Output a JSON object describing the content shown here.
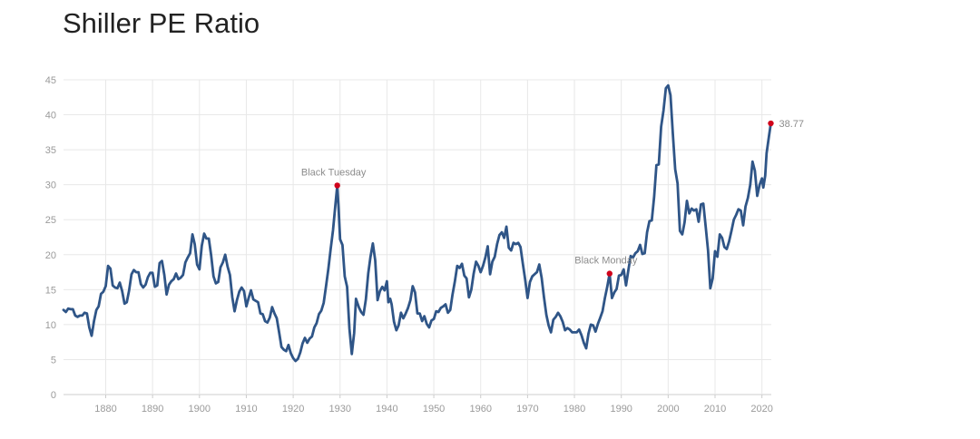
{
  "chart_data": {
    "type": "line",
    "title": "Shiller PE Ratio",
    "xlabel": "",
    "ylabel": "",
    "xlim": [
      1871,
      2022
    ],
    "ylim": [
      0,
      45
    ],
    "yticks": [
      0,
      5,
      10,
      15,
      20,
      25,
      30,
      35,
      40,
      45
    ],
    "xticks": [
      1880,
      1890,
      1900,
      1910,
      1920,
      1930,
      1940,
      1950,
      1960,
      1970,
      1980,
      1990,
      2000,
      2010,
      2020
    ],
    "grid": true,
    "legend": "none",
    "colors": {
      "line": "#2f5587",
      "marker": "#d0021b",
      "grid": "#e8e8e8"
    },
    "series": [
      {
        "name": "Shiller PE Ratio",
        "points": [
          [
            1871.0,
            12.1
          ],
          [
            1871.5,
            11.8
          ],
          [
            1872.0,
            12.3
          ],
          [
            1872.5,
            12.2
          ],
          [
            1873.0,
            12.2
          ],
          [
            1873.5,
            11.3
          ],
          [
            1874.0,
            11.1
          ],
          [
            1874.5,
            11.3
          ],
          [
            1875.0,
            11.3
          ],
          [
            1875.5,
            11.7
          ],
          [
            1876.0,
            11.6
          ],
          [
            1876.5,
            9.6
          ],
          [
            1877.0,
            8.4
          ],
          [
            1877.5,
            10.5
          ],
          [
            1878.0,
            12.1
          ],
          [
            1878.5,
            12.6
          ],
          [
            1879.0,
            14.4
          ],
          [
            1879.5,
            14.7
          ],
          [
            1880.0,
            15.5
          ],
          [
            1880.5,
            18.4
          ],
          [
            1881.0,
            18.0
          ],
          [
            1881.5,
            15.6
          ],
          [
            1882.0,
            15.3
          ],
          [
            1882.5,
            15.2
          ],
          [
            1883.0,
            16.0
          ],
          [
            1883.5,
            14.8
          ],
          [
            1884.0,
            13.0
          ],
          [
            1884.5,
            13.2
          ],
          [
            1885.0,
            14.9
          ],
          [
            1885.5,
            17.2
          ],
          [
            1886.0,
            17.8
          ],
          [
            1886.5,
            17.5
          ],
          [
            1887.0,
            17.5
          ],
          [
            1887.5,
            15.8
          ],
          [
            1888.0,
            15.3
          ],
          [
            1888.5,
            15.7
          ],
          [
            1889.0,
            16.8
          ],
          [
            1889.5,
            17.4
          ],
          [
            1890.0,
            17.4
          ],
          [
            1890.5,
            15.4
          ],
          [
            1891.0,
            15.6
          ],
          [
            1891.5,
            18.8
          ],
          [
            1892.0,
            19.1
          ],
          [
            1892.5,
            17.1
          ],
          [
            1893.0,
            14.3
          ],
          [
            1893.5,
            15.7
          ],
          [
            1894.0,
            16.2
          ],
          [
            1894.5,
            16.5
          ],
          [
            1895.0,
            17.3
          ],
          [
            1895.5,
            16.5
          ],
          [
            1896.0,
            16.7
          ],
          [
            1896.5,
            17.1
          ],
          [
            1897.0,
            18.9
          ],
          [
            1897.5,
            19.6
          ],
          [
            1898.0,
            20.2
          ],
          [
            1898.5,
            22.9
          ],
          [
            1899.0,
            21.5
          ],
          [
            1899.5,
            18.6
          ],
          [
            1900.0,
            17.9
          ],
          [
            1900.5,
            21.3
          ],
          [
            1901.0,
            23.0
          ],
          [
            1901.5,
            22.3
          ],
          [
            1902.0,
            22.3
          ],
          [
            1902.5,
            19.9
          ],
          [
            1903.0,
            16.9
          ],
          [
            1903.5,
            15.9
          ],
          [
            1904.0,
            16.1
          ],
          [
            1904.5,
            18.2
          ],
          [
            1905.0,
            18.9
          ],
          [
            1905.5,
            20.0
          ],
          [
            1906.0,
            18.3
          ],
          [
            1906.5,
            17.1
          ],
          [
            1907.0,
            13.9
          ],
          [
            1907.5,
            11.9
          ],
          [
            1908.0,
            13.5
          ],
          [
            1908.5,
            14.7
          ],
          [
            1909.0,
            15.3
          ],
          [
            1909.5,
            14.8
          ],
          [
            1910.0,
            12.6
          ],
          [
            1910.5,
            13.8
          ],
          [
            1911.0,
            14.9
          ],
          [
            1911.5,
            13.6
          ],
          [
            1912.0,
            13.4
          ],
          [
            1912.5,
            13.2
          ],
          [
            1913.0,
            11.6
          ],
          [
            1913.5,
            11.5
          ],
          [
            1914.0,
            10.5
          ],
          [
            1914.5,
            10.3
          ],
          [
            1915.0,
            11.0
          ],
          [
            1915.5,
            12.5
          ],
          [
            1916.0,
            11.6
          ],
          [
            1916.5,
            10.9
          ],
          [
            1917.0,
            8.9
          ],
          [
            1917.5,
            6.8
          ],
          [
            1918.0,
            6.4
          ],
          [
            1918.5,
            6.2
          ],
          [
            1919.0,
            7.1
          ],
          [
            1919.5,
            5.9
          ],
          [
            1920.0,
            5.2
          ],
          [
            1920.5,
            4.8
          ],
          [
            1921.0,
            5.1
          ],
          [
            1921.5,
            6.0
          ],
          [
            1922.0,
            7.3
          ],
          [
            1922.5,
            8.1
          ],
          [
            1923.0,
            7.4
          ],
          [
            1923.5,
            8.0
          ],
          [
            1924.0,
            8.3
          ],
          [
            1924.5,
            9.6
          ],
          [
            1925.0,
            10.2
          ],
          [
            1925.5,
            11.5
          ],
          [
            1926.0,
            12.0
          ],
          [
            1926.5,
            13.1
          ],
          [
            1927.0,
            15.5
          ],
          [
            1927.5,
            18.0
          ],
          [
            1928.0,
            20.8
          ],
          [
            1928.5,
            23.5
          ],
          [
            1929.0,
            27.1
          ],
          [
            1929.4,
            29.9
          ],
          [
            1929.7,
            26.5
          ],
          [
            1930.0,
            22.2
          ],
          [
            1930.5,
            21.4
          ],
          [
            1931.0,
            16.9
          ],
          [
            1931.5,
            15.4
          ],
          [
            1932.0,
            9.4
          ],
          [
            1932.5,
            5.8
          ],
          [
            1933.0,
            8.8
          ],
          [
            1933.4,
            13.7
          ],
          [
            1934.0,
            12.5
          ],
          [
            1934.5,
            11.8
          ],
          [
            1935.0,
            11.4
          ],
          [
            1935.5,
            13.6
          ],
          [
            1936.0,
            17.3
          ],
          [
            1936.5,
            19.7
          ],
          [
            1937.0,
            21.6
          ],
          [
            1937.5,
            19.2
          ],
          [
            1938.0,
            13.5
          ],
          [
            1938.5,
            14.8
          ],
          [
            1939.0,
            15.4
          ],
          [
            1939.5,
            14.9
          ],
          [
            1940.0,
            16.2
          ],
          [
            1940.3,
            13.2
          ],
          [
            1940.7,
            13.7
          ],
          [
            1941.0,
            12.9
          ],
          [
            1941.5,
            10.4
          ],
          [
            1942.0,
            9.2
          ],
          [
            1942.5,
            9.9
          ],
          [
            1943.0,
            11.7
          ],
          [
            1943.5,
            10.9
          ],
          [
            1944.0,
            11.6
          ],
          [
            1944.5,
            12.4
          ],
          [
            1945.0,
            13.5
          ],
          [
            1945.5,
            15.5
          ],
          [
            1946.0,
            14.6
          ],
          [
            1946.5,
            11.6
          ],
          [
            1947.0,
            11.6
          ],
          [
            1947.5,
            10.5
          ],
          [
            1948.0,
            11.2
          ],
          [
            1948.5,
            10.1
          ],
          [
            1949.0,
            9.6
          ],
          [
            1949.5,
            10.6
          ],
          [
            1950.0,
            10.8
          ],
          [
            1950.5,
            11.9
          ],
          [
            1951.0,
            11.8
          ],
          [
            1951.5,
            12.4
          ],
          [
            1952.0,
            12.6
          ],
          [
            1952.5,
            12.9
          ],
          [
            1953.0,
            11.7
          ],
          [
            1953.5,
            12.1
          ],
          [
            1954.0,
            14.3
          ],
          [
            1954.5,
            16.2
          ],
          [
            1955.0,
            18.4
          ],
          [
            1955.5,
            18.1
          ],
          [
            1956.0,
            18.7
          ],
          [
            1956.5,
            17.0
          ],
          [
            1957.0,
            16.6
          ],
          [
            1957.5,
            13.9
          ],
          [
            1958.0,
            15.0
          ],
          [
            1958.5,
            17.3
          ],
          [
            1959.0,
            19.0
          ],
          [
            1959.5,
            18.4
          ],
          [
            1960.0,
            17.5
          ],
          [
            1960.5,
            18.4
          ],
          [
            1961.0,
            19.6
          ],
          [
            1961.5,
            21.2
          ],
          [
            1962.0,
            17.2
          ],
          [
            1962.5,
            19.0
          ],
          [
            1963.0,
            19.7
          ],
          [
            1963.5,
            21.5
          ],
          [
            1964.0,
            22.8
          ],
          [
            1964.5,
            23.2
          ],
          [
            1965.0,
            22.4
          ],
          [
            1965.5,
            24.0
          ],
          [
            1966.0,
            21.0
          ],
          [
            1966.5,
            20.6
          ],
          [
            1967.0,
            21.7
          ],
          [
            1967.5,
            21.5
          ],
          [
            1968.0,
            21.7
          ],
          [
            1968.5,
            21.1
          ],
          [
            1969.0,
            18.7
          ],
          [
            1969.5,
            16.4
          ],
          [
            1970.0,
            13.8
          ],
          [
            1970.5,
            16.1
          ],
          [
            1971.0,
            16.9
          ],
          [
            1971.5,
            17.2
          ],
          [
            1972.0,
            17.5
          ],
          [
            1972.5,
            18.6
          ],
          [
            1973.0,
            16.7
          ],
          [
            1973.5,
            13.9
          ],
          [
            1974.0,
            11.4
          ],
          [
            1974.5,
            9.9
          ],
          [
            1975.0,
            8.9
          ],
          [
            1975.5,
            10.7
          ],
          [
            1976.0,
            11.1
          ],
          [
            1976.5,
            11.7
          ],
          [
            1977.0,
            11.2
          ],
          [
            1977.5,
            10.4
          ],
          [
            1978.0,
            9.2
          ],
          [
            1978.5,
            9.5
          ],
          [
            1979.0,
            9.3
          ],
          [
            1979.5,
            8.9
          ],
          [
            1980.0,
            8.9
          ],
          [
            1980.5,
            8.9
          ],
          [
            1981.0,
            9.3
          ],
          [
            1981.5,
            8.5
          ],
          [
            1982.0,
            7.4
          ],
          [
            1982.5,
            6.6
          ],
          [
            1983.0,
            8.7
          ],
          [
            1983.5,
            10.0
          ],
          [
            1984.0,
            9.9
          ],
          [
            1984.5,
            9.0
          ],
          [
            1985.0,
            10.1
          ],
          [
            1985.5,
            11.0
          ],
          [
            1986.0,
            11.9
          ],
          [
            1986.5,
            13.8
          ],
          [
            1987.0,
            15.4
          ],
          [
            1987.5,
            17.3
          ],
          [
            1988.0,
            13.8
          ],
          [
            1988.5,
            14.6
          ],
          [
            1989.0,
            15.1
          ],
          [
            1989.5,
            17.0
          ],
          [
            1990.0,
            17.1
          ],
          [
            1990.5,
            17.9
          ],
          [
            1991.0,
            15.6
          ],
          [
            1991.5,
            17.8
          ],
          [
            1992.0,
            19.8
          ],
          [
            1992.5,
            19.6
          ],
          [
            1993.0,
            20.2
          ],
          [
            1993.5,
            20.5
          ],
          [
            1994.0,
            21.4
          ],
          [
            1994.5,
            20.1
          ],
          [
            1995.0,
            20.2
          ],
          [
            1995.5,
            23.2
          ],
          [
            1996.0,
            24.8
          ],
          [
            1996.5,
            24.9
          ],
          [
            1997.0,
            28.3
          ],
          [
            1997.5,
            32.8
          ],
          [
            1998.0,
            32.9
          ],
          [
            1998.5,
            38.3
          ],
          [
            1999.0,
            40.6
          ],
          [
            1999.5,
            43.8
          ],
          [
            2000.0,
            44.2
          ],
          [
            2000.5,
            42.8
          ],
          [
            2001.0,
            37.3
          ],
          [
            2001.5,
            32.2
          ],
          [
            2002.0,
            30.2
          ],
          [
            2002.5,
            23.4
          ],
          [
            2003.0,
            22.9
          ],
          [
            2003.5,
            24.6
          ],
          [
            2004.0,
            27.7
          ],
          [
            2004.5,
            25.9
          ],
          [
            2005.0,
            26.6
          ],
          [
            2005.5,
            26.3
          ],
          [
            2006.0,
            26.5
          ],
          [
            2006.5,
            24.7
          ],
          [
            2007.0,
            27.2
          ],
          [
            2007.5,
            27.3
          ],
          [
            2008.0,
            24.0
          ],
          [
            2008.5,
            20.6
          ],
          [
            2009.0,
            15.2
          ],
          [
            2009.5,
            16.6
          ],
          [
            2010.0,
            20.5
          ],
          [
            2010.5,
            19.7
          ],
          [
            2011.0,
            22.9
          ],
          [
            2011.5,
            22.4
          ],
          [
            2012.0,
            21.1
          ],
          [
            2012.5,
            20.8
          ],
          [
            2013.0,
            21.9
          ],
          [
            2013.5,
            23.4
          ],
          [
            2014.0,
            25.0
          ],
          [
            2014.5,
            25.7
          ],
          [
            2015.0,
            26.5
          ],
          [
            2015.5,
            26.3
          ],
          [
            2016.0,
            24.2
          ],
          [
            2016.5,
            26.9
          ],
          [
            2017.0,
            28.1
          ],
          [
            2017.5,
            30.0
          ],
          [
            2018.0,
            33.3
          ],
          [
            2018.5,
            32.0
          ],
          [
            2019.0,
            28.4
          ],
          [
            2019.5,
            30.0
          ],
          [
            2020.0,
            30.9
          ],
          [
            2020.3,
            29.6
          ],
          [
            2020.7,
            31.3
          ],
          [
            2021.0,
            34.5
          ],
          [
            2021.5,
            36.9
          ],
          [
            2021.9,
            38.77
          ]
        ]
      }
    ],
    "annotations": [
      {
        "label": "Black Tuesday",
        "x": 1929.4,
        "y": 29.9
      },
      {
        "label": "Black Monday",
        "x": 1987.5,
        "y": 17.3
      },
      {
        "label": "38.77",
        "x": 2021.9,
        "y": 38.77
      }
    ]
  }
}
